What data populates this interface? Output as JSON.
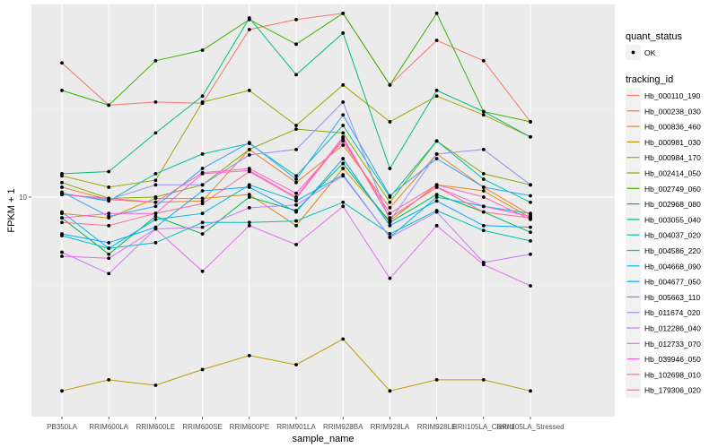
{
  "chart_data": {
    "type": "line",
    "title": "",
    "xlabel": "sample_name",
    "ylabel": "FPKM + 1",
    "y_scale": "log10",
    "ylim": [
      1.8,
      45
    ],
    "yticks": [
      10
    ],
    "ytick_labels": [
      "10"
    ],
    "grid": true,
    "legend_position": "right",
    "categories": [
      "PB350LA",
      "RRIM600LA",
      "RRIM600LE",
      "RRIM600SE",
      "RRIM600PE",
      "RRIM901LA",
      "RRIM928BA",
      "RRIM928LA",
      "RRIM928LE",
      "RRII105LA_Control",
      "RRII105LA_Stressed"
    ],
    "legend_quant": {
      "title": "quant_status",
      "entries": [
        {
          "label": "OK"
        }
      ]
    },
    "legend_tracking": {
      "title": "tracking_id"
    },
    "series": [
      {
        "name": "Hb_000110_190",
        "color": "#F8766D",
        "values": [
          28.5,
          20.5,
          21.0,
          20.8,
          37.0,
          40.0,
          42.0,
          24.0,
          34.0,
          29.0,
          18.0
        ]
      },
      {
        "name": "Hb_000238_030",
        "color": "#EA8331",
        "values": [
          10.8,
          9.8,
          9.6,
          9.7,
          14.5,
          11.2,
          15.0,
          9.2,
          14.0,
          10.8,
          8.7
        ]
      },
      {
        "name": "Hb_000836_460",
        "color": "#D89000",
        "values": [
          8.8,
          8.5,
          9.9,
          9.9,
          10.2,
          8.0,
          12.5,
          8.3,
          11.0,
          10.5,
          8.5
        ]
      },
      {
        "name": "Hb_000981_030",
        "color": "#C09B00",
        "values": [
          2.2,
          2.4,
          2.3,
          2.6,
          2.9,
          2.7,
          3.3,
          2.2,
          2.4,
          2.4,
          2.2
        ]
      },
      {
        "name": "Hb_000984_170",
        "color": "#A3A500",
        "values": [
          11.8,
          10.8,
          11.4,
          21.0,
          23.0,
          17.5,
          24.0,
          18.0,
          22.0,
          19.0,
          16.0
        ]
      },
      {
        "name": "Hb_002414_050",
        "color": "#7CAE00",
        "values": [
          11.2,
          9.9,
          10.0,
          11.0,
          14.5,
          17.0,
          16.5,
          9.6,
          15.5,
          12.0,
          11.0
        ]
      },
      {
        "name": "Hb_002749_060",
        "color": "#39B600",
        "values": [
          23.0,
          20.5,
          29.0,
          31.5,
          40.0,
          33.0,
          42.0,
          24.0,
          42.0,
          19.5,
          18.0
        ]
      },
      {
        "name": "Hb_002968_080",
        "color": "#00BB4E",
        "values": [
          8.5,
          6.4,
          8.6,
          7.5,
          10.0,
          9.0,
          13.0,
          8.2,
          10.2,
          8.9,
          7.6
        ]
      },
      {
        "name": "Hb_003055_040",
        "color": "#00BF7D",
        "values": [
          12.0,
          12.2,
          16.5,
          22.0,
          40.5,
          26.0,
          36.0,
          12.5,
          23.0,
          19.5,
          16.0
        ]
      },
      {
        "name": "Hb_004037_020",
        "color": "#00C1A3",
        "values": [
          10.3,
          9.7,
          12.0,
          14.0,
          15.2,
          11.8,
          17.5,
          10.0,
          15.5,
          11.5,
          9.6
        ]
      },
      {
        "name": "Hb_004586_220",
        "color": "#00BFC4",
        "values": [
          7.4,
          6.7,
          7.0,
          8.2,
          8.2,
          8.3,
          9.6,
          7.5,
          9.0,
          7.7,
          7.1
        ]
      },
      {
        "name": "Hb_004668_090",
        "color": "#00B8E7",
        "values": [
          8.9,
          6.7,
          8.4,
          8.8,
          11.0,
          9.7,
          11.9,
          7.3,
          10.0,
          9.3,
          8.8
        ]
      },
      {
        "name": "Hb_004677_050",
        "color": "#00A9FF",
        "values": [
          7.5,
          7.0,
          7.9,
          10.5,
          10.8,
          8.9,
          13.5,
          8.0,
          9.7,
          8.0,
          7.9
        ]
      },
      {
        "name": "Hb_005663_110",
        "color": "#35A2FF",
        "values": [
          10.4,
          8.6,
          9.3,
          12.5,
          15.3,
          11.5,
          19.0,
          10.1,
          13.5,
          10.8,
          10.1
        ]
      },
      {
        "name": "Hb_011674_020",
        "color": "#9590FF",
        "values": [
          10.2,
          9.8,
          11.0,
          11.0,
          13.9,
          14.5,
          21.0,
          8.3,
          14.0,
          14.5,
          11.0
        ]
      },
      {
        "name": "Hb_012286_040",
        "color": "#C77CFF",
        "values": [
          6.5,
          5.5,
          7.8,
          7.9,
          9.2,
          9.4,
          11.8,
          7.3,
          8.9,
          6.0,
          6.4
        ]
      },
      {
        "name": "Hb_012733_070",
        "color": "#E76BF3",
        "values": [
          6.3,
          6.2,
          7.8,
          5.6,
          8.0,
          6.9,
          9.3,
          5.3,
          8.0,
          5.9,
          5.0
        ]
      },
      {
        "name": "Hb_039946_050",
        "color": "#FA62DB",
        "values": [
          8.5,
          8.8,
          8.8,
          12.0,
          12.3,
          10.0,
          16.0,
          8.5,
          10.8,
          9.3,
          8.6
        ]
      },
      {
        "name": "Hb_102698_010",
        "color": "#FF62BC",
        "values": [
          10.2,
          9.9,
          9.6,
          12.1,
          12.5,
          10.3,
          15.5,
          8.8,
          11.0,
          10.0,
          8.4
        ]
      },
      {
        "name": "Hb_179306_020",
        "color": "#FF6C91",
        "values": [
          8.2,
          8.0,
          8.8,
          9.5,
          12.2,
          9.9,
          15.8,
          8.5,
          10.8,
          8.9,
          8.5
        ]
      }
    ]
  }
}
